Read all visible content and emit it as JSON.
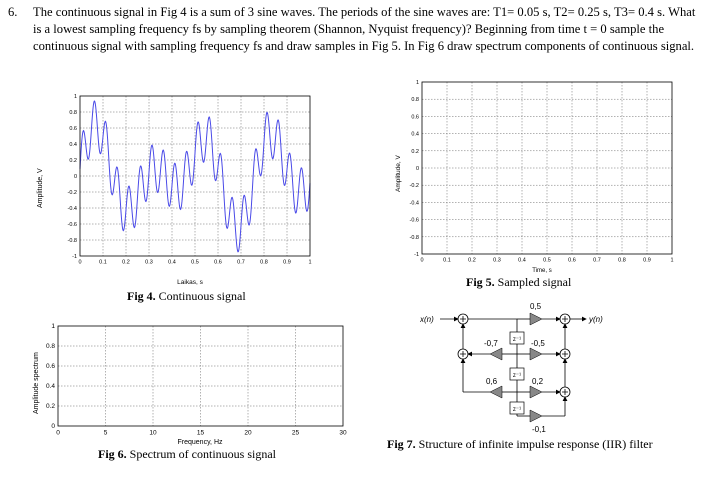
{
  "problem": {
    "number": "6.",
    "text": "The continuous signal in Fig 4 is a sum of 3 sine waves. The periods of the sine waves are: T1= 0.05 s, T2= 0.25 s, T3= 0.4 s. What is a lowest sampling frequency fs by sampling theorem (Shannon, Nyquist frequency)? Beginning from time t = 0 sample the continuous signal with sampling frequency fs and draw samples in Fig 5. In Fig 6 draw spectrum components of continuous signal."
  },
  "fig4": {
    "caption_label": "Fig 4.",
    "caption_text": "Continuous signal",
    "ylabel": "Amplitude, V",
    "xlabel": "Laikas, s",
    "yticks": [
      "-1",
      "-0.8",
      "-0.6",
      "-0.4",
      "-0.2",
      "0",
      "0.2",
      "0.4",
      "0.6",
      "0.8",
      "1"
    ],
    "xticks": [
      "0",
      "0.1",
      "0.2",
      "0.3",
      "0.4",
      "0.5",
      "0.6",
      "0.7",
      "0.8",
      "0.9",
      "1"
    ]
  },
  "fig5": {
    "caption_label": "Fig 5.",
    "caption_text": "Sampled signal",
    "ylabel": "Amplitude, V",
    "xlabel": "Time, s",
    "yticks": [
      "-1",
      "-0.8",
      "-0.6",
      "-0.4",
      "-0.2",
      "0",
      "0.2",
      "0.4",
      "0.6",
      "0.8",
      "1"
    ],
    "xticks": [
      "0",
      "0.1",
      "0.2",
      "0.3",
      "0.4",
      "0.5",
      "0.6",
      "0.7",
      "0.8",
      "0.9",
      "1"
    ]
  },
  "fig6": {
    "caption_label": "Fig 6.",
    "caption_text": "Spectrum of continuous signal",
    "ylabel": "Amplitude spectrum",
    "xlabel": "Frequency, Hz",
    "yticks": [
      "0",
      "0.2",
      "0.4",
      "0.6",
      "0.8",
      "1"
    ],
    "xticks": [
      "0",
      "5",
      "10",
      "15",
      "20",
      "25",
      "30"
    ]
  },
  "fig7": {
    "caption_label": "Fig 7.",
    "caption_text": "Structure of infinite impulse response (IIR) filter",
    "input_label": "x(n)",
    "output_label": "y(n)",
    "delay_label": "z⁻¹",
    "coef_b0": "0,5",
    "coef_a1": "-0,7",
    "coef_b1": "-0,5",
    "coef_a2": "0,6",
    "coef_b2": "0,2",
    "coef_b3": "-0,1"
  },
  "colors": {
    "signal": "#4a4ae8",
    "grid": "#555555"
  }
}
